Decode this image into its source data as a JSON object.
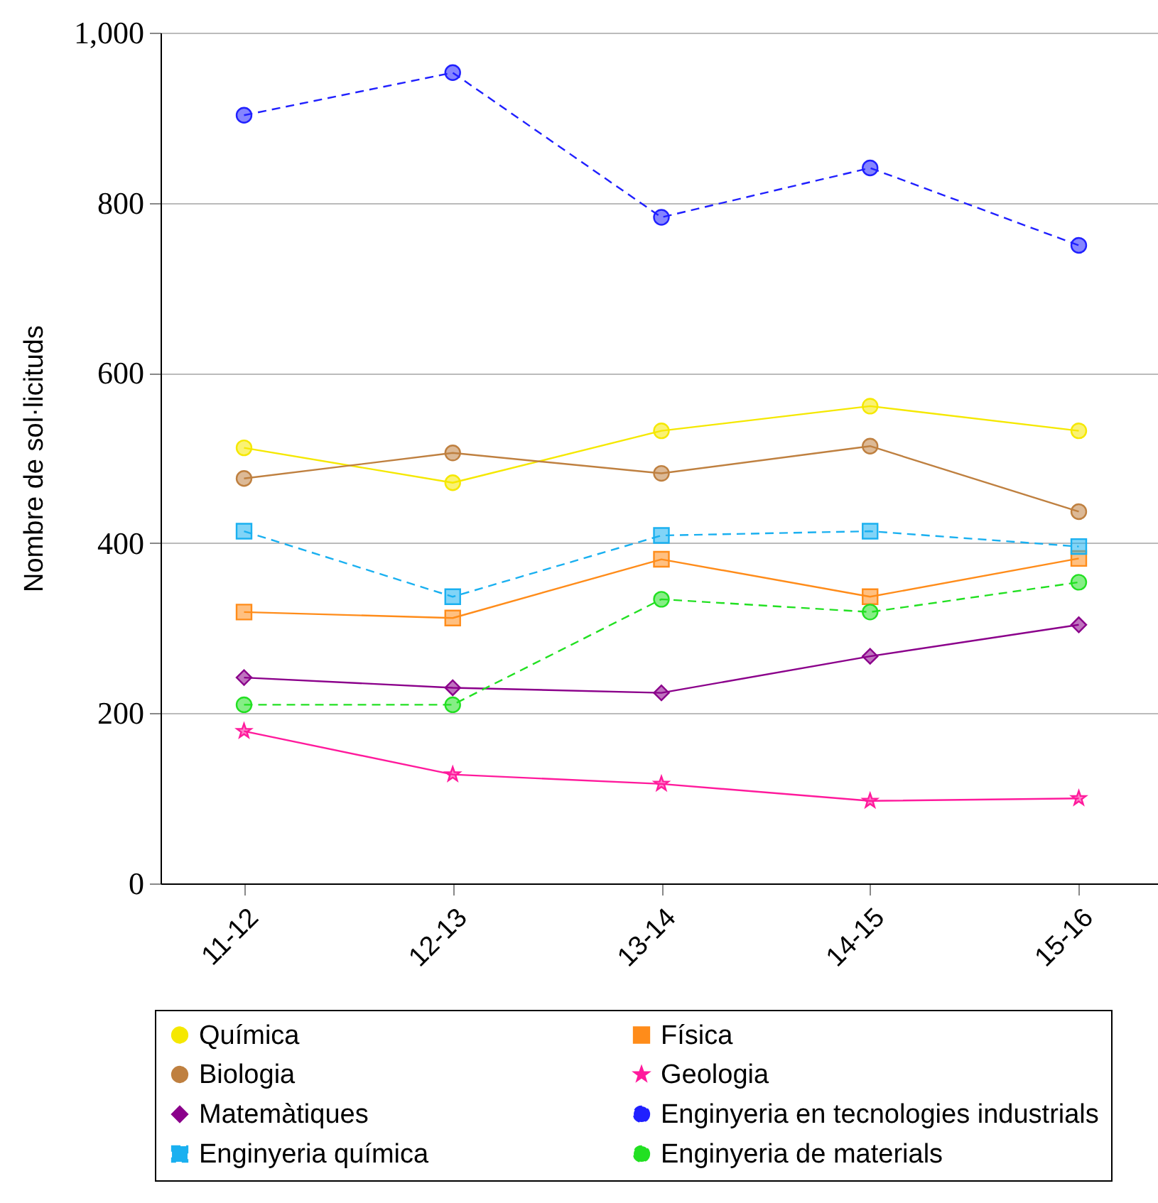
{
  "chart_data": {
    "type": "line",
    "ylabel": "Nombre de sol·licituds",
    "categories": [
      "11-12",
      "12-13",
      "13-14",
      "14-15",
      "15-16"
    ],
    "ylim": [
      0,
      1000
    ],
    "yticks": [
      0,
      200,
      400,
      600,
      800,
      {
        "value": 1000,
        "label": "1,000"
      }
    ],
    "grid": "y",
    "legend": "bottom",
    "series": [
      {
        "name": "Química",
        "color": "#f5e800",
        "marker": "circle",
        "line_style": "solid",
        "values": [
          512,
          471,
          532,
          561,
          532
        ]
      },
      {
        "name": "Física",
        "color": "#ff8c1a",
        "marker": "square",
        "line_style": "solid",
        "values": [
          319,
          312,
          381,
          337,
          382
        ]
      },
      {
        "name": "Biologia",
        "color": "#bf8040",
        "marker": "circle",
        "line_style": "solid",
        "values": [
          476,
          506,
          482,
          514,
          437
        ]
      },
      {
        "name": "Geologia",
        "color": "#ff1a9c",
        "marker": "star",
        "line_style": "solid",
        "values": [
          179,
          128,
          117,
          97,
          100
        ]
      },
      {
        "name": "Matemàtiques",
        "color": "#8b008b",
        "marker": "diamond",
        "line_style": "solid",
        "values": [
          242,
          230,
          224,
          267,
          304
        ]
      },
      {
        "name": "Enginyeria en tecnologies industrials",
        "color": "#2020ff",
        "marker": "circle",
        "line_style": "dashed",
        "values": [
          903,
          953,
          783,
          841,
          750
        ]
      },
      {
        "name": "Enginyeria química",
        "color": "#1ab0f0",
        "marker": "square",
        "line_style": "dashed",
        "values": [
          414,
          337,
          409,
          414,
          396
        ]
      },
      {
        "name": "Enginyeria de materials",
        "color": "#22e022",
        "marker": "circle",
        "line_style": "dashed",
        "values": [
          210,
          210,
          334,
          319,
          354
        ]
      }
    ]
  }
}
